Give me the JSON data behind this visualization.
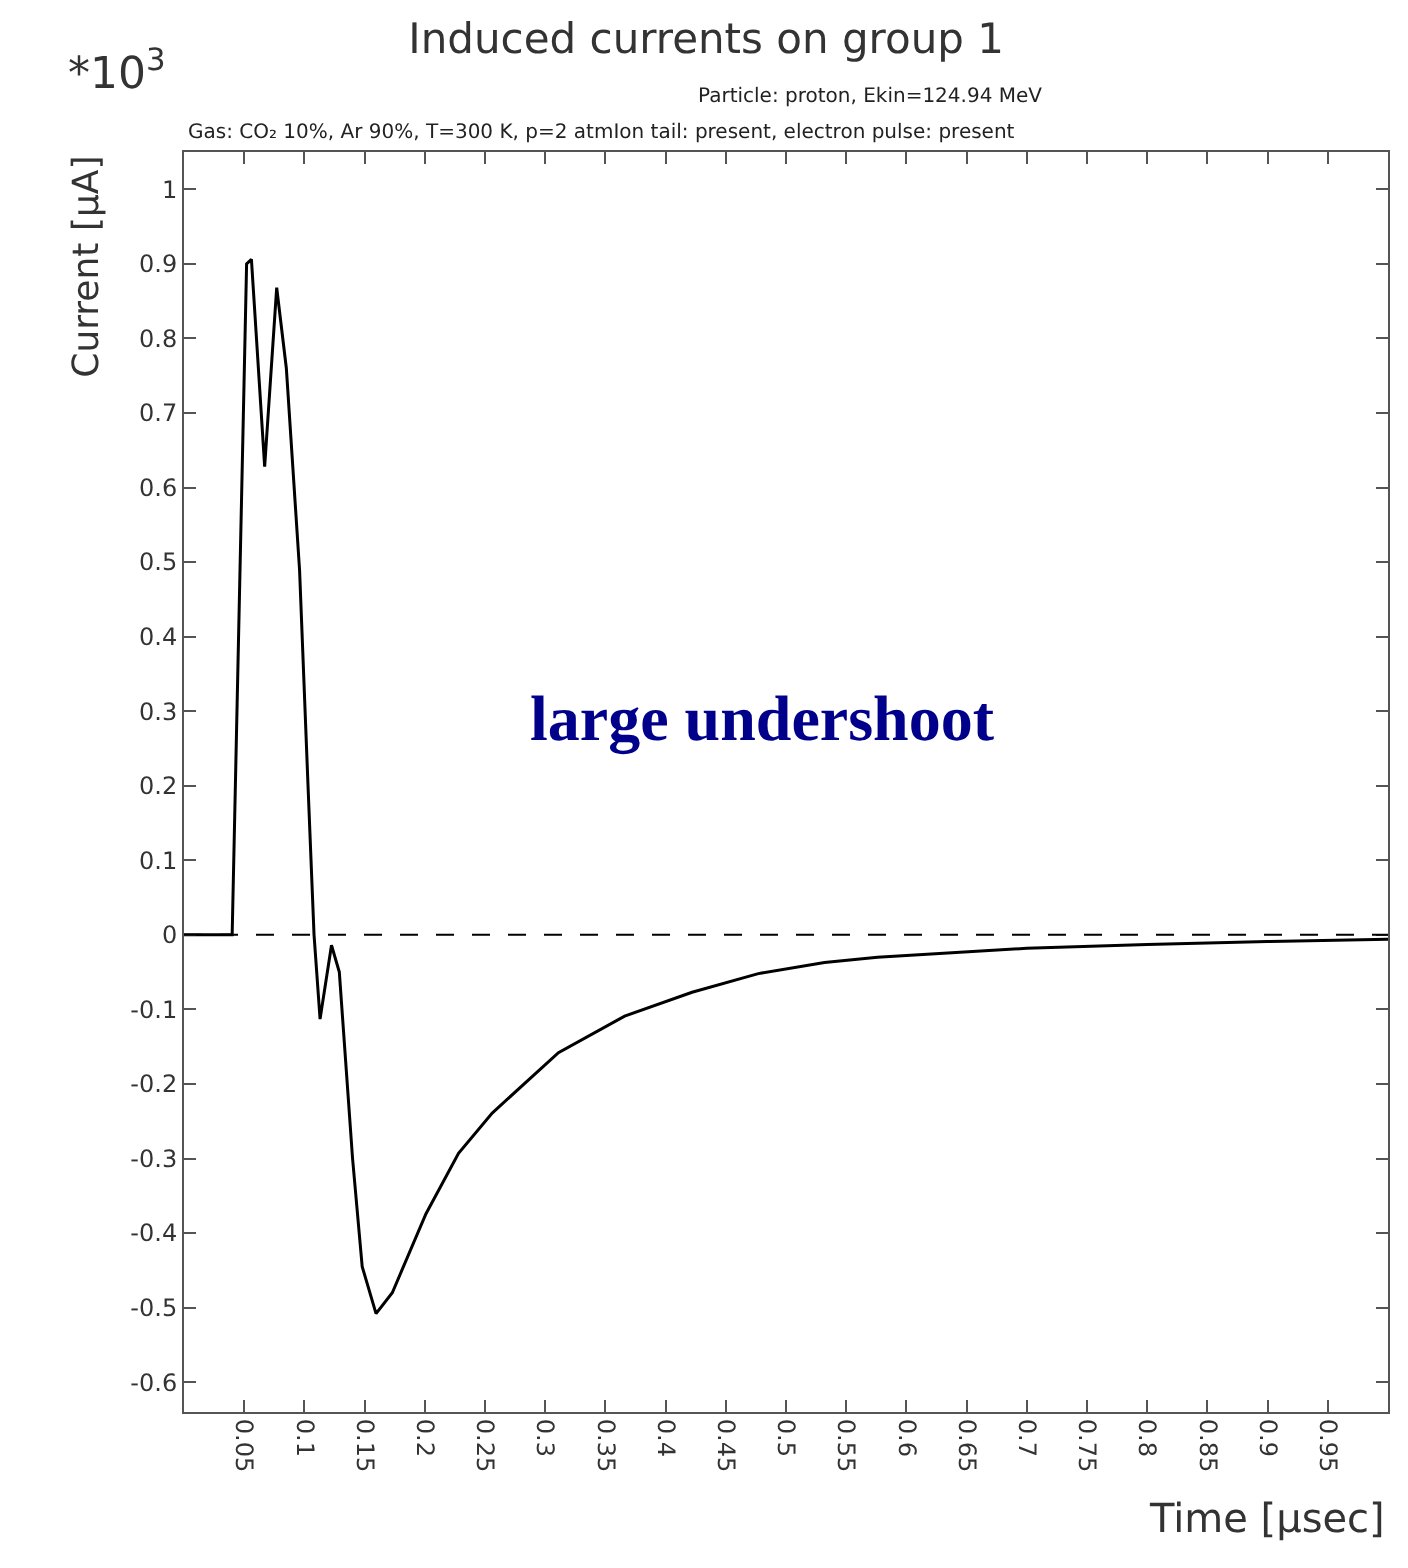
{
  "chart_data": {
    "type": "line",
    "title": "Induced currents on group 1",
    "xlabel": "Time [μsec]",
    "ylabel": "Current [μA]",
    "annotations": [
      "*10$^{3}$",
      "Particle: proton, Ekin=124.94 MeV",
      "Gas: CO₂ 10%, Ar 90%, T=300 K, p=2 atmIon tail: present, electron pulse: present",
      "large undershoot"
    ],
    "x": [
      0,
      0.04,
      0.052,
      0.056,
      0.067,
      0.077,
      0.085,
      0.096,
      0.103,
      0.108,
      0.113,
      0.1225,
      0.129,
      0.14,
      0.148,
      0.1595,
      0.173,
      0.201,
      0.228,
      0.256,
      0.311,
      0.366,
      0.422,
      0.477,
      0.532,
      0.576,
      0.7,
      0.8,
      0.9,
      1.0
    ],
    "series": [
      {
        "color": "#000000",
        "values": [
          0,
          0,
          0.9,
          0.906,
          0.628,
          0.868,
          0.76,
          0.489,
          0.2,
          0,
          -0.113,
          -0.014,
          -0.05,
          -0.3,
          -0.445,
          -0.508,
          -0.48,
          -0.374,
          -0.293,
          -0.239,
          -0.158,
          -0.109,
          -0.077,
          -0.052,
          -0.037,
          -0.03,
          -0.018,
          -0.013,
          -0.009,
          -0.006
        ]
      }
    ],
    "xlim": [
      0,
      1.0
    ],
    "xticks": [
      0.05,
      0.1,
      0.15,
      0.2,
      0.25,
      0.3,
      0.35,
      0.4,
      0.45,
      0.5,
      0.55,
      0.6,
      0.65,
      0.7,
      0.75,
      0.8,
      0.85,
      0.9,
      0.95
    ],
    "ylim": [
      -0.64,
      1.05
    ],
    "yticks": [
      -0.6,
      -0.5,
      -0.4,
      -0.3,
      -0.2,
      -0.1,
      0,
      0.1,
      0.2,
      0.3,
      0.4,
      0.5,
      0.6,
      0.7,
      0.8,
      0.9,
      1
    ],
    "ref_lines": [
      {
        "axis": "y",
        "value": 0,
        "color": "#000000",
        "line_style": "dashed"
      }
    ],
    "marker": "none",
    "line_style": "solid"
  }
}
